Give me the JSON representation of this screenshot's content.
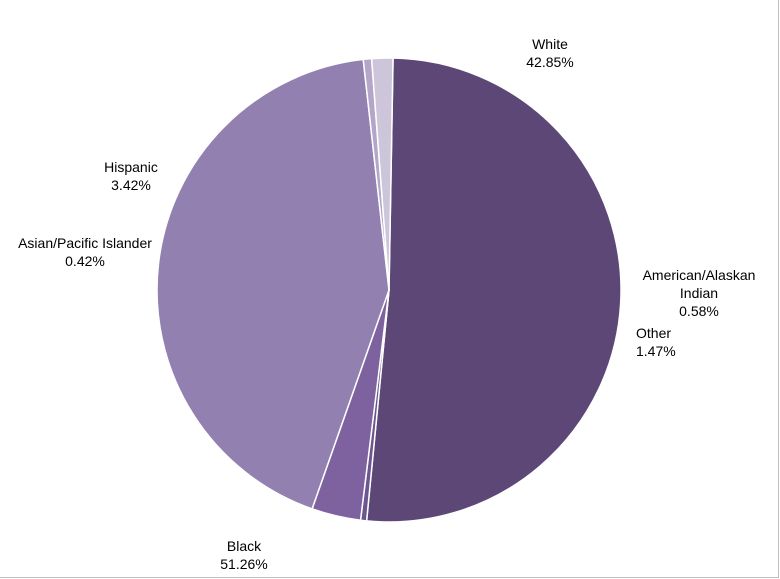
{
  "chart_data": {
    "type": "pie",
    "title": "",
    "start_angle_deg": 271,
    "direction": "clockwise",
    "slices": [
      {
        "key": "black",
        "label_lines": [
          "Black",
          "51.26%"
        ],
        "value": 51.26,
        "color": "#5c4777"
      },
      {
        "key": "asian_pacific_islander",
        "label_lines": [
          "Asian/Pacific Islander",
          "0.42%"
        ],
        "value": 0.42,
        "color": "#6d5690"
      },
      {
        "key": "hispanic",
        "label_lines": [
          "Hispanic",
          "3.42%"
        ],
        "value": 3.42,
        "color": "#7e62a0"
      },
      {
        "key": "white",
        "label_lines": [
          "White",
          "42.85%"
        ],
        "value": 42.85,
        "color": "#9280b0"
      },
      {
        "key": "american_alaskan_indian",
        "label_lines": [
          "American/Alaskan",
          "Indian",
          "0.58%"
        ],
        "value": 0.58,
        "color": "#b3a6c9"
      },
      {
        "key": "other",
        "label_lines": [
          "Other",
          "1.47%"
        ],
        "value": 1.47,
        "color": "#cdc6db"
      }
    ],
    "legend": "none",
    "slice_border_color": "#ffffff"
  }
}
